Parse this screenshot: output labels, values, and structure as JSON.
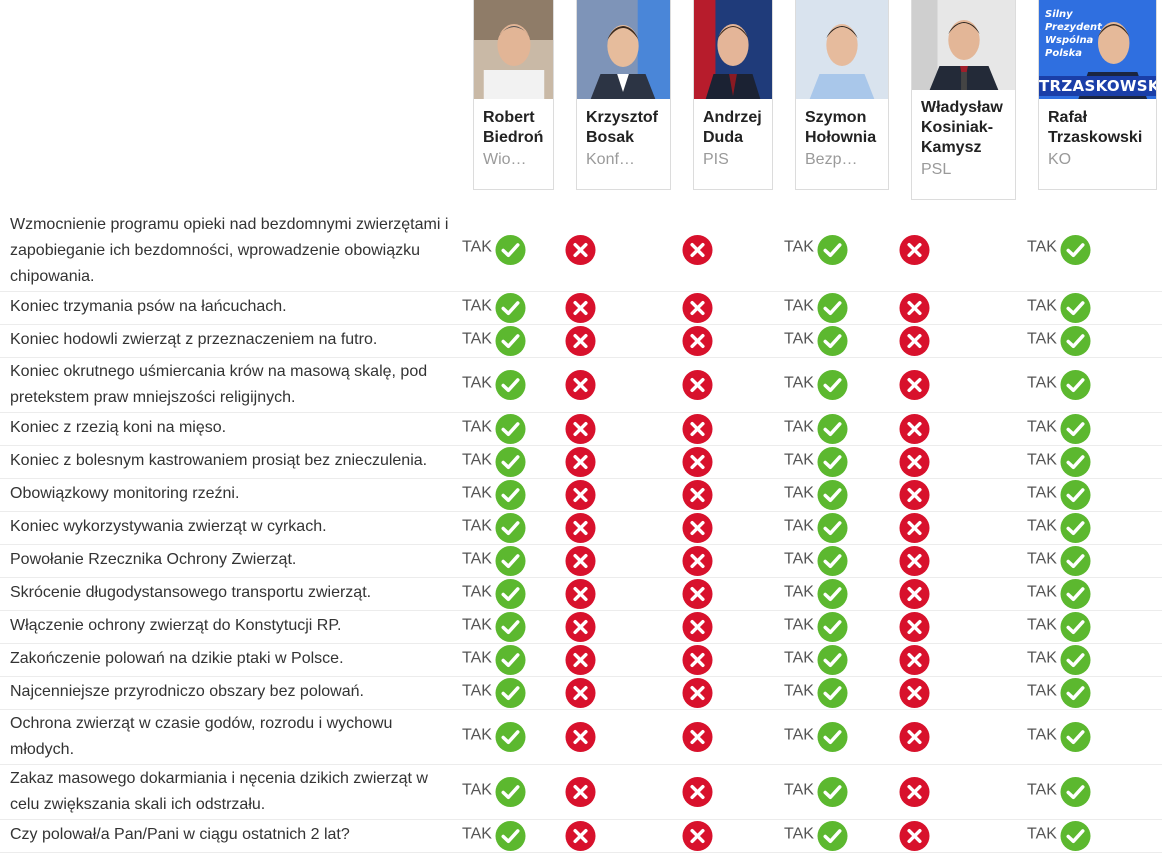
{
  "candidates": [
    {
      "id": "biedron",
      "name": "Robert Biedroń",
      "party": "Wio…"
    },
    {
      "id": "bosak",
      "name": "Krzysztof Bosak",
      "party": "Konf…"
    },
    {
      "id": "duda",
      "name": "Andrzej Duda",
      "party": "PIS"
    },
    {
      "id": "holownia",
      "name": "Szymon Hołownia",
      "party": "Bezp…"
    },
    {
      "id": "kosiniak",
      "name": "Władysław Kosiniak-Kamysz",
      "party": "PSL"
    },
    {
      "id": "trzaskowski",
      "name": "Rafał Trzaskowski",
      "party": "KO",
      "slogan": "Silny Prezydent Wspólna Polska",
      "brand": "TRZASKOWSKI"
    }
  ],
  "yes_label": "TAK",
  "answers_legend": {
    "yes": "check-icon",
    "no": "cross-icon"
  },
  "colors": {
    "yes": "#5cb82f",
    "no": "#d8112c",
    "border": "#ececec",
    "muted": "#9a9a9a"
  },
  "questions": [
    {
      "text": "Wzmocnienie programu opieki nad bezdomnymi zwierzętami i zapobieganie ich bezdomności, wprowadzenie obowiązku chipowania.",
      "answers": [
        "yes",
        "no",
        "no",
        "yes",
        "no",
        "yes"
      ]
    },
    {
      "text": "Koniec trzymania psów na łańcuchach.",
      "answers": [
        "yes",
        "no",
        "no",
        "yes",
        "no",
        "yes"
      ]
    },
    {
      "text": "Koniec hodowli zwierząt z przeznaczeniem na futro.",
      "answers": [
        "yes",
        "no",
        "no",
        "yes",
        "no",
        "yes"
      ]
    },
    {
      "text": "Koniec okrutnego uśmiercania krów na masową skalę, pod pretekstem praw mniejszości religijnych.",
      "answers": [
        "yes",
        "no",
        "no",
        "yes",
        "no",
        "yes"
      ]
    },
    {
      "text": "Koniec z rzezią koni na mięso.",
      "answers": [
        "yes",
        "no",
        "no",
        "yes",
        "no",
        "yes"
      ]
    },
    {
      "text": "Koniec z bolesnym kastrowaniem prosiąt bez znieczulenia.",
      "answers": [
        "yes",
        "no",
        "no",
        "yes",
        "no",
        "yes"
      ]
    },
    {
      "text": "Obowiązkowy monitoring rzeźni.",
      "answers": [
        "yes",
        "no",
        "no",
        "yes",
        "no",
        "yes"
      ]
    },
    {
      "text": "Koniec wykorzystywania zwierząt w cyrkach.",
      "answers": [
        "yes",
        "no",
        "no",
        "yes",
        "no",
        "yes"
      ]
    },
    {
      "text": "Powołanie Rzecznika Ochrony Zwierząt.",
      "answers": [
        "yes",
        "no",
        "no",
        "yes",
        "no",
        "yes"
      ]
    },
    {
      "text": "Skrócenie długodystansowego transportu zwierząt.",
      "answers": [
        "yes",
        "no",
        "no",
        "yes",
        "no",
        "yes"
      ]
    },
    {
      "text": "Włączenie ochrony zwierząt do Konstytucji RP.",
      "answers": [
        "yes",
        "no",
        "no",
        "yes",
        "no",
        "yes"
      ]
    },
    {
      "text": "Zakończenie polowań na dzikie ptaki w Polsce.",
      "answers": [
        "yes",
        "no",
        "no",
        "yes",
        "no",
        "yes"
      ]
    },
    {
      "text": "Najcenniejsze przyrodniczo obszary bez polowań.",
      "answers": [
        "yes",
        "no",
        "no",
        "yes",
        "no",
        "yes"
      ]
    },
    {
      "text": "Ochrona zwierząt w czasie godów, rozrodu i wychowu młodych.",
      "answers": [
        "yes",
        "no",
        "no",
        "yes",
        "no",
        "yes"
      ]
    },
    {
      "text": "Zakaz masowego dokarmiania i nęcenia dzikich zwierząt w celu zwiększania skali ich odstrzału.",
      "answers": [
        "yes",
        "no",
        "no",
        "yes",
        "no",
        "yes"
      ]
    },
    {
      "text": "Czy polował/a Pan/Pani w ciągu ostatnich 2 lat?",
      "answers": [
        "yes",
        "no",
        "no",
        "yes",
        "no",
        "yes"
      ]
    }
  ]
}
